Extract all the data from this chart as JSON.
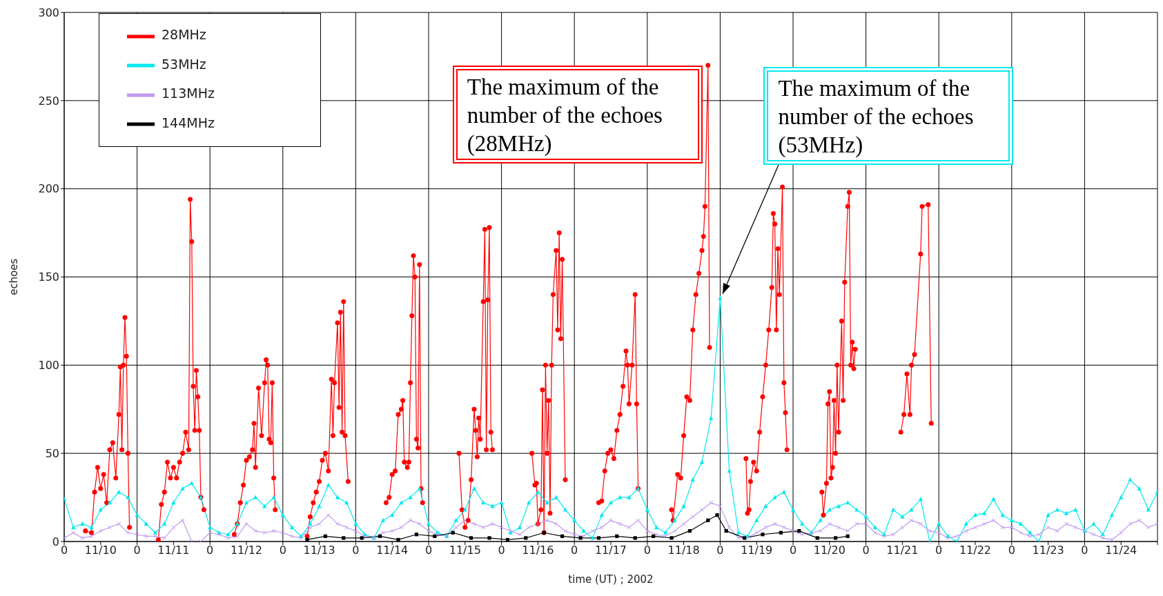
{
  "chart_data": {
    "type": "line",
    "xlabel": "time (UT) ; 2002",
    "ylabel": "echoes",
    "xlim": [
      "2002-11-10T00:00",
      "2002-11-25T00:00"
    ],
    "ylim": [
      0,
      300
    ],
    "yticks": [
      0,
      50,
      100,
      150,
      200,
      250,
      300
    ],
    "xticks": [
      {
        "value": "2002-11-10T00:00",
        "label": "0"
      },
      {
        "value": "2002-11-10T12:00",
        "label": "11/10"
      },
      {
        "value": "2002-11-11T00:00",
        "label": "0"
      },
      {
        "value": "2002-11-11T12:00",
        "label": "11/11"
      },
      {
        "value": "2002-11-12T00:00",
        "label": "0"
      },
      {
        "value": "2002-11-12T12:00",
        "label": "11/12"
      },
      {
        "value": "2002-11-13T00:00",
        "label": "0"
      },
      {
        "value": "2002-11-13T12:00",
        "label": "11/13"
      },
      {
        "value": "2002-11-14T00:00",
        "label": "0"
      },
      {
        "value": "2002-11-14T12:00",
        "label": "11/14"
      },
      {
        "value": "2002-11-15T00:00",
        "label": "0"
      },
      {
        "value": "2002-11-15T12:00",
        "label": "11/15"
      },
      {
        "value": "2002-11-16T00:00",
        "label": "0"
      },
      {
        "value": "2002-11-16T12:00",
        "label": "11/16"
      },
      {
        "value": "2002-11-17T00:00",
        "label": "0"
      },
      {
        "value": "2002-11-17T12:00",
        "label": "11/17"
      },
      {
        "value": "2002-11-18T00:00",
        "label": "0"
      },
      {
        "value": "2002-11-18T12:00",
        "label": "11/18"
      },
      {
        "value": "2002-11-19T00:00",
        "label": "0"
      },
      {
        "value": "2002-11-19T12:00",
        "label": "11/19"
      },
      {
        "value": "2002-11-20T00:00",
        "label": "0"
      },
      {
        "value": "2002-11-20T12:00",
        "label": "11/20"
      },
      {
        "value": "2002-11-21T00:00",
        "label": "0"
      },
      {
        "value": "2002-11-21T12:00",
        "label": "11/21"
      },
      {
        "value": "2002-11-22T00:00",
        "label": "0"
      },
      {
        "value": "2002-11-22T12:00",
        "label": "11/22"
      },
      {
        "value": "2002-11-23T00:00",
        "label": "0"
      },
      {
        "value": "2002-11-23T12:00",
        "label": "11/23"
      },
      {
        "value": "2002-11-24T00:00",
        "label": "0"
      },
      {
        "value": "2002-11-24T12:00",
        "label": "11/24"
      },
      {
        "value": "2002-11-25T00:00",
        "label": null
      }
    ],
    "grid": true,
    "legend": "top left",
    "x": [
      "2002-11-10T00:00",
      "2002-11-10T03:00",
      "2002-11-10T06:00",
      "2002-11-10T09:00",
      "2002-11-10T12:00",
      "2002-11-10T15:00",
      "2002-11-10T18:00",
      "2002-11-10T21:00",
      "2002-11-11T00:00",
      "2002-11-11T03:00",
      "2002-11-11T06:00",
      "2002-11-11T09:00",
      "2002-11-11T12:00",
      "2002-11-11T15:00",
      "2002-11-11T18:00",
      "2002-11-11T21:00",
      "2002-11-12T00:00",
      "2002-11-12T03:00",
      "2002-11-12T06:00",
      "2002-11-12T09:00",
      "2002-11-12T12:00",
      "2002-11-12T15:00",
      "2002-11-12T18:00",
      "2002-11-12T21:00",
      "2002-11-13T00:00",
      "2002-11-13T03:00",
      "2002-11-13T06:00",
      "2002-11-13T09:00",
      "2002-11-13T12:00",
      "2002-11-13T15:00",
      "2002-11-13T18:00",
      "2002-11-13T21:00",
      "2002-11-14T00:00",
      "2002-11-14T03:00",
      "2002-11-14T06:00",
      "2002-11-14T09:00",
      "2002-11-14T12:00",
      "2002-11-14T15:00",
      "2002-11-14T18:00",
      "2002-11-14T21:00",
      "2002-11-15T00:00",
      "2002-11-15T03:00",
      "2002-11-15T06:00",
      "2002-11-15T09:00",
      "2002-11-15T12:00",
      "2002-11-15T15:00",
      "2002-11-15T18:00",
      "2002-11-15T21:00",
      "2002-11-16T00:00",
      "2002-11-16T03:00",
      "2002-11-16T06:00",
      "2002-11-16T09:00",
      "2002-11-16T12:00",
      "2002-11-16T15:00",
      "2002-11-16T18:00",
      "2002-11-16T21:00",
      "2002-11-17T00:00",
      "2002-11-17T03:00",
      "2002-11-17T06:00",
      "2002-11-17T09:00",
      "2002-11-17T12:00",
      "2002-11-17T15:00",
      "2002-11-17T18:00",
      "2002-11-17T21:00",
      "2002-11-18T00:00",
      "2002-11-18T03:00",
      "2002-11-18T06:00",
      "2002-11-18T09:00",
      "2002-11-18T12:00",
      "2002-11-18T15:00",
      "2002-11-18T18:00",
      "2002-11-18T21:00",
      "2002-11-19T00:00",
      "2002-11-19T03:00",
      "2002-11-19T06:00",
      "2002-11-19T09:00",
      "2002-11-19T12:00",
      "2002-11-19T15:00",
      "2002-11-19T18:00",
      "2002-11-19T21:00",
      "2002-11-20T00:00",
      "2002-11-20T03:00",
      "2002-11-20T06:00",
      "2002-11-20T09:00",
      "2002-11-20T12:00",
      "2002-11-20T15:00",
      "2002-11-20T18:00",
      "2002-11-20T21:00",
      "2002-11-21T00:00",
      "2002-11-21T03:00",
      "2002-11-21T06:00",
      "2002-11-21T09:00",
      "2002-11-21T12:00",
      "2002-11-21T15:00",
      "2002-11-21T18:00",
      "2002-11-21T21:00",
      "2002-11-22T00:00",
      "2002-11-22T03:00",
      "2002-11-22T06:00",
      "2002-11-22T09:00",
      "2002-11-22T12:00",
      "2002-11-22T15:00",
      "2002-11-22T18:00",
      "2002-11-22T21:00",
      "2002-11-23T00:00",
      "2002-11-23T03:00",
      "2002-11-23T06:00",
      "2002-11-23T09:00",
      "2002-11-23T12:00",
      "2002-11-23T15:00",
      "2002-11-23T18:00",
      "2002-11-23T21:00",
      "2002-11-24T00:00",
      "2002-11-24T03:00",
      "2002-11-24T06:00",
      "2002-11-24T09:00",
      "2002-11-24T12:00",
      "2002-11-24T15:00",
      "2002-11-24T18:00",
      "2002-11-24T21:00",
      "2002-11-25T00:00"
    ],
    "series": [
      {
        "name": "28MHz",
        "color": "#ff0000",
        "marker": "circle",
        "x": [
          "2002-11-10T07:00",
          "2002-11-10T09:00",
          "2002-11-10T10:00",
          "2002-11-10T11:00",
          "2002-11-10T12:00",
          "2002-11-10T13:00",
          "2002-11-10T14:00",
          "2002-11-10T15:00",
          "2002-11-10T16:00",
          "2002-11-10T17:00",
          "2002-11-10T18:00",
          "2002-11-10T18:30",
          "2002-11-10T19:00",
          "2002-11-10T19:30",
          "2002-11-10T20:00",
          "2002-11-10T20:30",
          "2002-11-10T21:00",
          "2002-11-10T21:30",
          "2002-11-11T01:00",
          "2002-11-11T07:00",
          "2002-11-11T08:00",
          "2002-11-11T09:00",
          "2002-11-11T10:00",
          "2002-11-11T11:00",
          "2002-11-11T12:00",
          "2002-11-11T13:00",
          "2002-11-11T14:00",
          "2002-11-11T15:00",
          "2002-11-11T16:00",
          "2002-11-11T17:00",
          "2002-11-11T17:30",
          "2002-11-11T18:00",
          "2002-11-11T18:30",
          "2002-11-11T19:00",
          "2002-11-11T19:30",
          "2002-11-11T20:00",
          "2002-11-11T20:30",
          "2002-11-11T21:00",
          "2002-11-11T22:00",
          "2002-11-12T02:00",
          "2002-11-12T08:00",
          "2002-11-12T09:00",
          "2002-11-12T10:00",
          "2002-11-12T11:00",
          "2002-11-12T12:00",
          "2002-11-12T13:00",
          "2002-11-12T14:00",
          "2002-11-12T14:30",
          "2002-11-12T15:00",
          "2002-11-12T16:00",
          "2002-11-12T17:00",
          "2002-11-12T18:00",
          "2002-11-12T18:30",
          "2002-11-12T19:00",
          "2002-11-12T19:30",
          "2002-11-12T20:00",
          "2002-11-12T20:30",
          "2002-11-12T21:00",
          "2002-11-12T21:30",
          "2002-11-13T03:00",
          "2002-11-13T08:00",
          "2002-11-13T09:00",
          "2002-11-13T10:00",
          "2002-11-13T11:00",
          "2002-11-13T12:00",
          "2002-11-13T13:00",
          "2002-11-13T14:00",
          "2002-11-13T15:00",
          "2002-11-13T16:00",
          "2002-11-13T16:30",
          "2002-11-13T17:00",
          "2002-11-13T18:00",
          "2002-11-13T18:30",
          "2002-11-13T19:00",
          "2002-11-13T19:30",
          "2002-11-13T20:00",
          "2002-11-13T20:30",
          "2002-11-13T21:30",
          "2002-11-14T04:00",
          "2002-11-14T10:00",
          "2002-11-14T11:00",
          "2002-11-14T12:00",
          "2002-11-14T13:00",
          "2002-11-14T14:00",
          "2002-11-14T15:00",
          "2002-11-14T15:30",
          "2002-11-14T16:00",
          "2002-11-14T17:00",
          "2002-11-14T17:30",
          "2002-11-14T18:00",
          "2002-11-14T18:30",
          "2002-11-14T19:00",
          "2002-11-14T19:30",
          "2002-11-14T20:00",
          "2002-11-14T20:30",
          "2002-11-14T21:00",
          "2002-11-14T21:30",
          "2002-11-14T22:00",
          "2002-11-15T05:00",
          "2002-11-15T10:00",
          "2002-11-15T11:00",
          "2002-11-15T12:00",
          "2002-11-15T13:00",
          "2002-11-15T14:00",
          "2002-11-15T15:00",
          "2002-11-15T15:30",
          "2002-11-15T16:00",
          "2002-11-15T16:30",
          "2002-11-15T17:00",
          "2002-11-15T18:00",
          "2002-11-15T18:30",
          "2002-11-15T19:00",
          "2002-11-15T19:30",
          "2002-11-15T20:00",
          "2002-11-15T20:30",
          "2002-11-15T21:00",
          "2002-11-16T04:00",
          "2002-11-16T10:00",
          "2002-11-16T11:00",
          "2002-11-16T11:30",
          "2002-11-16T12:00",
          "2002-11-16T13:00",
          "2002-11-16T13:30",
          "2002-11-16T14:00",
          "2002-11-16T14:30",
          "2002-11-16T15:00",
          "2002-11-16T15:30",
          "2002-11-16T16:00",
          "2002-11-16T16:30",
          "2002-11-16T17:00",
          "2002-11-16T18:00",
          "2002-11-16T18:30",
          "2002-11-16T19:00",
          "2002-11-16T19:30",
          "2002-11-16T20:00",
          "2002-11-16T21:00",
          "2002-11-17T04:00",
          "2002-11-17T08:00",
          "2002-11-17T09:00",
          "2002-11-17T10:00",
          "2002-11-17T11:00",
          "2002-11-17T12:00",
          "2002-11-17T13:00",
          "2002-11-17T14:00",
          "2002-11-17T15:00",
          "2002-11-17T16:00",
          "2002-11-17T17:00",
          "2002-11-17T17:30",
          "2002-11-17T18:00",
          "2002-11-17T19:00",
          "2002-11-17T20:00",
          "2002-11-17T20:30",
          "2002-11-17T21:00",
          "2002-11-18T04:00",
          "2002-11-18T08:00",
          "2002-11-18T08:30",
          "2002-11-18T10:00",
          "2002-11-18T11:00",
          "2002-11-18T12:00",
          "2002-11-18T13:00",
          "2002-11-18T14:00",
          "2002-11-18T15:00",
          "2002-11-18T16:00",
          "2002-11-18T17:00",
          "2002-11-18T18:00",
          "2002-11-18T18:30",
          "2002-11-18T19:00",
          "2002-11-18T20:00",
          "2002-11-18T20:30",
          "2002-11-19T04:00",
          "2002-11-19T08:30",
          "2002-11-19T09:00",
          "2002-11-19T09:30",
          "2002-11-19T10:00",
          "2002-11-19T11:00",
          "2002-11-19T12:00",
          "2002-11-19T13:00",
          "2002-11-19T14:00",
          "2002-11-19T15:00",
          "2002-11-19T16:00",
          "2002-11-19T17:00",
          "2002-11-19T17:30",
          "2002-11-19T18:00",
          "2002-11-19T18:30",
          "2002-11-19T19:00",
          "2002-11-19T19:30",
          "2002-11-19T20:30",
          "2002-11-19T21:00",
          "2002-11-19T21:30",
          "2002-11-19T22:00",
          "2002-11-20T05:00",
          "2002-11-20T09:30",
          "2002-11-20T10:00",
          "2002-11-20T11:00",
          "2002-11-20T11:30",
          "2002-11-20T12:00",
          "2002-11-20T12:30",
          "2002-11-20T13:00",
          "2002-11-20T13:30",
          "2002-11-20T14:00",
          "2002-11-20T14:30",
          "2002-11-20T15:00",
          "2002-11-20T16:00",
          "2002-11-20T16:30",
          "2002-11-20T17:00",
          "2002-11-20T18:00",
          "2002-11-20T18:30",
          "2002-11-20T19:00",
          "2002-11-20T19:30",
          "2002-11-20T20:00",
          "2002-11-20T20:30",
          "2002-11-21T06:00",
          "2002-11-21T11:30",
          "2002-11-21T12:30",
          "2002-11-21T13:30",
          "2002-11-21T14:30",
          "2002-11-21T15:00",
          "2002-11-21T16:00",
          "2002-11-21T18:00",
          "2002-11-21T18:30",
          "2002-11-21T20:30",
          "2002-11-21T21:30"
        ],
        "values": [
          6,
          5,
          28,
          42,
          30,
          38,
          22,
          52,
          56,
          36,
          72,
          99,
          52,
          100,
          127,
          105,
          50,
          8,
          null,
          1,
          21,
          28,
          45,
          36,
          42,
          36,
          45,
          50,
          62,
          52,
          194,
          170,
          88,
          63,
          97,
          82,
          63,
          25,
          18,
          null,
          4,
          10,
          22,
          32,
          46,
          48,
          52,
          67,
          42,
          87,
          60,
          90,
          103,
          100,
          58,
          56,
          90,
          36,
          18,
          null,
          3,
          14,
          22,
          28,
          34,
          46,
          50,
          40,
          92,
          60,
          90,
          124,
          76,
          130,
          62,
          136,
          60,
          34,
          null,
          22,
          25,
          38,
          40,
          72,
          75,
          80,
          45,
          42,
          45,
          90,
          128,
          162,
          150,
          58,
          53,
          157,
          30,
          22,
          null,
          50,
          18,
          8,
          12,
          35,
          75,
          63,
          48,
          70,
          58,
          136,
          177,
          52,
          137,
          178,
          62,
          52,
          null,
          50,
          32,
          33,
          10,
          18,
          86,
          5,
          100,
          50,
          80,
          16,
          100,
          140,
          165,
          120,
          175,
          115,
          160,
          35,
          null,
          22,
          23,
          40,
          50,
          52,
          47,
          63,
          72,
          88,
          108,
          100,
          78,
          100,
          140,
          78,
          30,
          null,
          18,
          12,
          38,
          36,
          60,
          82,
          80,
          120,
          140,
          152,
          165,
          173,
          190,
          270,
          110,
          null,
          47,
          16,
          18,
          34,
          45,
          40,
          62,
          82,
          100,
          120,
          144,
          186,
          180,
          120,
          166,
          140,
          201,
          90,
          73,
          52,
          null,
          28,
          15,
          33,
          78,
          85,
          36,
          42,
          80,
          50,
          100,
          62,
          125,
          80,
          147,
          190,
          198,
          100,
          113,
          98,
          109,
          null,
          62,
          72,
          95,
          72,
          100,
          106,
          163,
          190,
          191,
          67
        ]
      },
      {
        "name": "53MHz",
        "color": "#00e8f0",
        "marker": "triangle",
        "values": [
          24,
          8,
          10,
          8,
          18,
          22,
          28,
          25,
          15,
          10,
          5,
          10,
          22,
          30,
          33,
          25,
          8,
          5,
          4,
          10,
          22,
          25,
          20,
          25,
          15,
          8,
          3,
          10,
          20,
          32,
          25,
          22,
          10,
          4,
          2,
          12,
          15,
          22,
          25,
          30,
          10,
          5,
          3,
          12,
          18,
          30,
          22,
          20,
          22,
          5,
          8,
          22,
          28,
          22,
          25,
          18,
          12,
          6,
          2,
          15,
          22,
          25,
          25,
          30,
          18,
          8,
          5,
          12,
          20,
          35,
          45,
          70,
          138,
          40,
          5,
          3,
          12,
          20,
          25,
          28,
          18,
          10,
          5,
          12,
          18,
          20,
          22,
          18,
          14,
          8,
          4,
          18,
          14,
          18,
          24,
          0,
          10,
          3,
          0,
          10,
          15,
          16,
          24,
          15,
          12,
          10,
          5,
          0,
          15,
          18,
          16,
          18,
          6,
          10,
          4,
          15,
          25,
          35,
          30,
          18,
          28
        ]
      },
      {
        "name": "113MHz",
        "color": "#c09af0",
        "marker": "cross",
        "values": [
          2,
          5,
          2,
          3,
          6,
          8,
          10,
          5,
          4,
          3,
          3,
          2,
          8,
          12,
          0,
          0,
          5,
          4,
          2,
          3,
          10,
          6,
          5,
          6,
          5,
          3,
          2,
          8,
          10,
          15,
          10,
          8,
          6,
          3,
          2,
          5,
          6,
          8,
          12,
          10,
          6,
          4,
          3,
          8,
          12,
          10,
          8,
          10,
          8,
          6,
          4,
          8,
          10,
          12,
          10,
          6,
          4,
          3,
          6,
          8,
          12,
          10,
          8,
          12,
          6,
          4,
          3,
          6,
          10,
          14,
          18,
          22,
          20,
          8,
          2,
          2,
          5,
          8,
          10,
          8,
          6,
          4,
          5,
          6,
          10,
          8,
          6,
          10,
          10,
          5,
          3,
          4,
          8,
          12,
          10,
          6,
          5,
          2,
          3,
          6,
          8,
          10,
          12,
          8,
          8,
          5,
          3,
          4,
          8,
          6,
          10,
          8,
          6,
          4,
          2,
          1,
          5,
          10,
          12,
          8,
          10
        ]
      },
      {
        "name": "144MHz",
        "color": "#000000",
        "marker": "square",
        "x": [
          "2002-11-13T08:00",
          "2002-11-13T14:00",
          "2002-11-13T20:00",
          "2002-11-14T02:00",
          "2002-11-14T08:00",
          "2002-11-14T14:00",
          "2002-11-14T20:00",
          "2002-11-15T02:00",
          "2002-11-15T08:00",
          "2002-11-15T14:00",
          "2002-11-15T20:00",
          "2002-11-16T02:00",
          "2002-11-16T08:00",
          "2002-11-16T14:00",
          "2002-11-16T20:00",
          "2002-11-17T02:00",
          "2002-11-17T08:00",
          "2002-11-17T14:00",
          "2002-11-17T20:00",
          "2002-11-18T02:00",
          "2002-11-18T08:00",
          "2002-11-18T14:00",
          "2002-11-18T20:00",
          "2002-11-18T23:00",
          "2002-11-19T02:00",
          "2002-11-19T08:00",
          "2002-11-19T14:00",
          "2002-11-19T20:00",
          "2002-11-20T02:00",
          "2002-11-20T08:00",
          "2002-11-20T14:00",
          "2002-11-20T18:00"
        ],
        "values": [
          1,
          3,
          2,
          2,
          3,
          1,
          4,
          3,
          5,
          2,
          2,
          1,
          2,
          5,
          3,
          2,
          2,
          3,
          2,
          3,
          2,
          6,
          12,
          15,
          6,
          2,
          4,
          5,
          6,
          2,
          2,
          3
        ]
      }
    ],
    "annotations": [
      {
        "text": "The maximum of the number of the echoes (28MHz)",
        "x": "2002-11-18T20:00",
        "y": 270
      },
      {
        "text": "The maximum of the number of the echoes (53MHz)",
        "x": "2002-11-19T00:00",
        "y": 138
      }
    ]
  }
}
